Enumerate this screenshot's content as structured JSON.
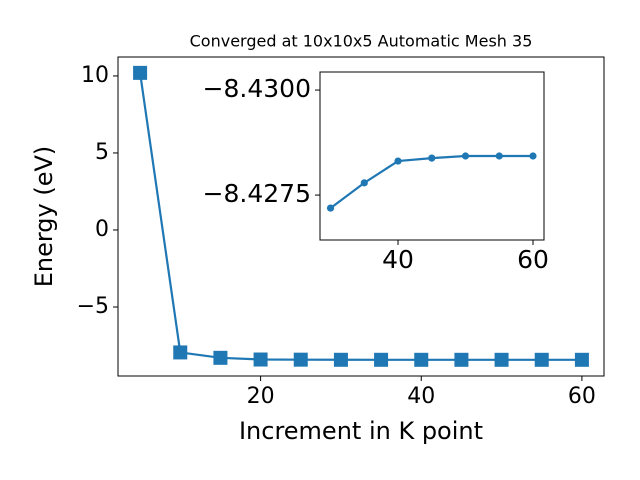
{
  "chart_data": [
    {
      "type": "line",
      "title": "Converged at 10x10x5 Automatic Mesh 35",
      "x_label": "Increment in K point",
      "y_label": "Energy (eV)",
      "x": [
        5,
        10,
        15,
        20,
        25,
        30,
        35,
        40,
        45,
        50,
        55,
        60
      ],
      "series": [
        {
          "name": "Energy",
          "color": "#1f77b4",
          "marker": "square",
          "values": [
            10.2,
            -7.95,
            -8.3,
            -8.41,
            -8.42,
            -8.4272,
            -8.4278,
            -8.4283,
            -8.4284,
            -8.42842,
            -8.42843,
            -8.42843
          ]
        }
      ],
      "xlim": [
        2.25,
        62.75
      ],
      "xticks": [
        20,
        40,
        60
      ],
      "ylim": [
        -9.48,
        11.23
      ],
      "yticks": [
        {
          "value": -5,
          "label": "−5"
        },
        0,
        5,
        10
      ]
    },
    {
      "type": "line",
      "x": [
        30,
        35,
        40,
        45,
        50,
        55,
        60
      ],
      "series": [
        {
          "name": "Energy",
          "color": "#1f77b4",
          "marker": "circle",
          "values": [
            -8.42719,
            -8.42779,
            -8.42831,
            -8.42838,
            -8.42843,
            -8.42843,
            -8.42843
          ]
        }
      ],
      "xlim": [
        28.44,
        61.63
      ],
      "xticks": [
        40,
        60
      ],
      "ylim": [
        -8.42643,
        -8.43043
      ],
      "yticks": [
        {
          "value": -8.4275,
          "label": "−8.4275"
        },
        {
          "value": -8.43,
          "label": "−8.4300"
        }
      ]
    }
  ]
}
